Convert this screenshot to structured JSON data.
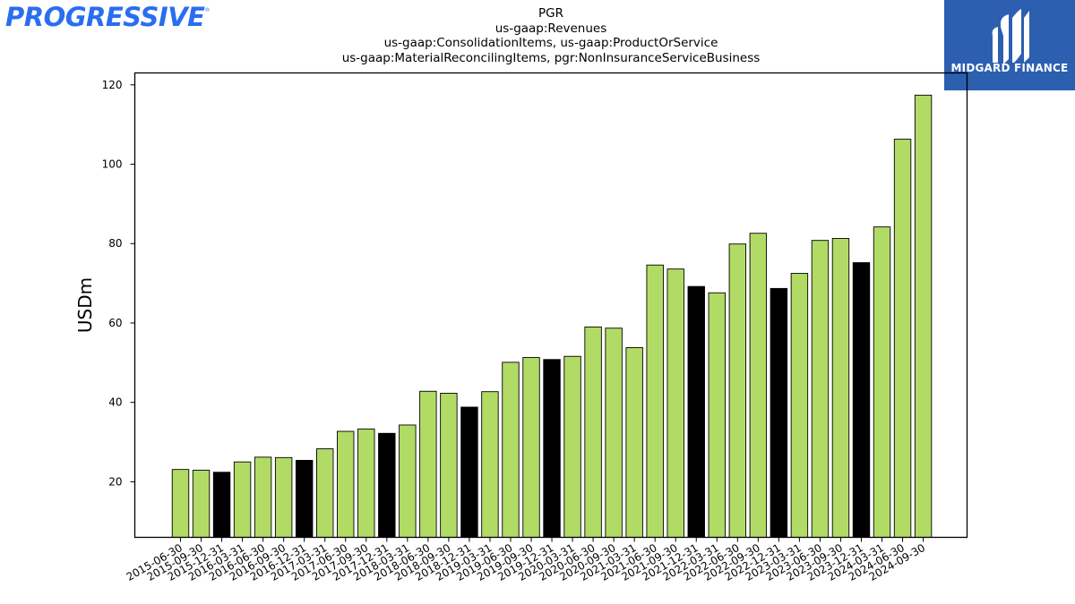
{
  "logo": {
    "brand": "PROGRESSIVE",
    "mark": "®"
  },
  "badge": {
    "name": "MIDGARD FINANCE",
    "icon": "midgard-logo-icon",
    "bg": "#2c5fb0"
  },
  "colors": {
    "bar_default": "#b2db66",
    "bar_highlight": "#000000"
  },
  "chart_data": {
    "type": "bar",
    "title": [
      "PGR",
      "us-gaap:Revenues",
      "us-gaap:ConsolidationItems, us-gaap:ProductOrService",
      "us-gaap:MaterialReconcilingItems, pgr:NonInsuranceServiceBusiness"
    ],
    "xlabel": "",
    "ylabel": "USDm",
    "ylim": [
      6,
      123
    ],
    "yticks": [
      20,
      40,
      60,
      80,
      100,
      120
    ],
    "categories": [
      "2015-06-30",
      "2015-09-30",
      "2015-12-31",
      "2016-03-31",
      "2016-06-30",
      "2016-09-30",
      "2016-12-31",
      "2017-03-31",
      "2017-06-30",
      "2017-09-30",
      "2017-12-31",
      "2018-03-31",
      "2018-06-30",
      "2018-09-30",
      "2018-12-31",
      "2019-03-31",
      "2019-06-30",
      "2019-09-30",
      "2019-12-31",
      "2020-03-31",
      "2020-06-30",
      "2020-09-30",
      "2021-03-31",
      "2021-06-30",
      "2021-09-30",
      "2021-12-31",
      "2022-03-31",
      "2022-06-30",
      "2022-09-30",
      "2022-12-31",
      "2023-03-31",
      "2023-06-30",
      "2023-09-30",
      "2023-12-31",
      "2024-03-31",
      "2024-06-30",
      "2024-09-30"
    ],
    "values": [
      23.1,
      22.9,
      22.4,
      25.0,
      26.2,
      26.1,
      25.4,
      28.3,
      32.7,
      33.3,
      32.2,
      34.3,
      42.8,
      42.3,
      38.8,
      42.7,
      50.1,
      51.3,
      50.8,
      51.6,
      59.0,
      58.7,
      53.8,
      74.6,
      73.6,
      69.2,
      67.6,
      79.9,
      82.6,
      68.7,
      72.5,
      80.8,
      81.3,
      75.2,
      84.2,
      106.3,
      117.4
    ],
    "highlight": [
      false,
      false,
      true,
      false,
      false,
      false,
      true,
      false,
      false,
      false,
      true,
      false,
      false,
      false,
      true,
      false,
      false,
      false,
      true,
      false,
      false,
      false,
      false,
      false,
      false,
      true,
      false,
      false,
      false,
      true,
      false,
      false,
      false,
      true,
      false,
      false,
      false
    ],
    "grid": false,
    "legend": "none"
  }
}
